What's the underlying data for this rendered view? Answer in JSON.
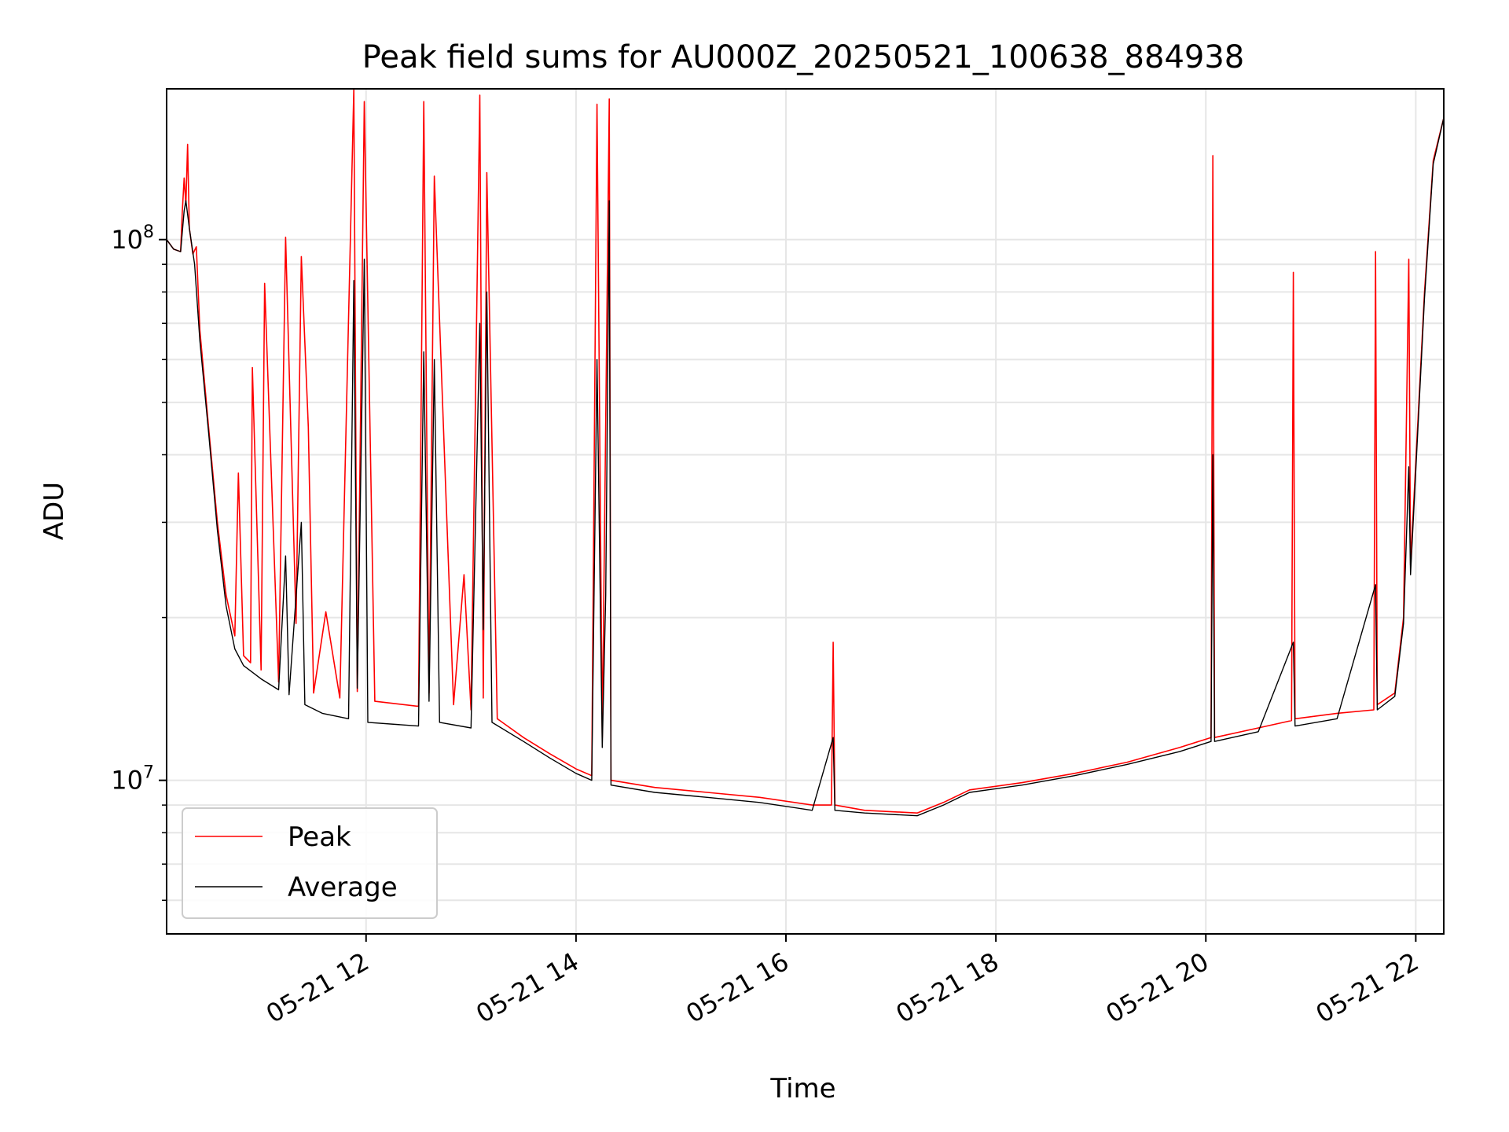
{
  "chart_data": {
    "type": "line",
    "title": "Peak field sums for AU000Z_20250521_100638_884938",
    "xlabel": "Time",
    "ylabel": "ADU",
    "yscale": "log",
    "xlim": [
      "2025-05-21 10:06",
      "2025-05-21 22:16"
    ],
    "ylim": [
      5200000,
      190000000
    ],
    "x_ticks": [
      {
        "value": "2025-05-21 12:00",
        "label": "05-21 12"
      },
      {
        "value": "2025-05-21 14:00",
        "label": "05-21 14"
      },
      {
        "value": "2025-05-21 16:00",
        "label": "05-21 16"
      },
      {
        "value": "2025-05-21 18:00",
        "label": "05-21 18"
      },
      {
        "value": "2025-05-21 20:00",
        "label": "05-21 20"
      },
      {
        "value": "2025-05-21 22:00",
        "label": "05-21 22"
      }
    ],
    "y_ticks": [
      {
        "value": 10000000,
        "base": "10",
        "exp": "7"
      },
      {
        "value": 100000000,
        "base": "10",
        "exp": "8"
      }
    ],
    "grid": true,
    "legend_position": "lower-left",
    "series": [
      {
        "name": "Peak",
        "color": "#ff0000",
        "points": [
          [
            "2025-05-21 10:06",
            100000000
          ],
          [
            "2025-05-21 10:10",
            96000000
          ],
          [
            "2025-05-21 10:14",
            95000000
          ],
          [
            "2025-05-21 10:15",
            113000000
          ],
          [
            "2025-05-21 10:16",
            130000000
          ],
          [
            "2025-05-21 10:17",
            116000000
          ],
          [
            "2025-05-21 10:18",
            150000000
          ],
          [
            "2025-05-21 10:19",
            105000000
          ],
          [
            "2025-05-21 10:21",
            94000000
          ],
          [
            "2025-05-21 10:23",
            97000000
          ],
          [
            "2025-05-21 10:25",
            68000000
          ],
          [
            "2025-05-21 10:30",
            45000000
          ],
          [
            "2025-05-21 10:35",
            30000000
          ],
          [
            "2025-05-21 10:40",
            22000000
          ],
          [
            "2025-05-21 10:45",
            18500000
          ],
          [
            "2025-05-21 10:47",
            37000000
          ],
          [
            "2025-05-21 10:50",
            17000000
          ],
          [
            "2025-05-21 10:54",
            16500000
          ],
          [
            "2025-05-21 10:55",
            58000000
          ],
          [
            "2025-05-21 11:00",
            16000000
          ],
          [
            "2025-05-21 11:02",
            83000000
          ],
          [
            "2025-05-21 11:10",
            15200000
          ],
          [
            "2025-05-21 11:14",
            101000000
          ],
          [
            "2025-05-21 11:20",
            19500000
          ],
          [
            "2025-05-21 11:23",
            93000000
          ],
          [
            "2025-05-21 11:27",
            45000000
          ],
          [
            "2025-05-21 11:30",
            14500000
          ],
          [
            "2025-05-21 11:37",
            20500000
          ],
          [
            "2025-05-21 11:45",
            14200000
          ],
          [
            "2025-05-21 11:53",
            190000000
          ],
          [
            "2025-05-21 11:55",
            14600000
          ],
          [
            "2025-05-21 11:59",
            180000000
          ],
          [
            "2025-05-21 12:05",
            14000000
          ],
          [
            "2025-05-21 12:30",
            13700000
          ],
          [
            "2025-05-21 12:33",
            180000000
          ],
          [
            "2025-05-21 12:36",
            14500000
          ],
          [
            "2025-05-21 12:39",
            131000000
          ],
          [
            "2025-05-21 12:50",
            13800000
          ],
          [
            "2025-05-21 12:56",
            24000000
          ],
          [
            "2025-05-21 13:00",
            13500000
          ],
          [
            "2025-05-21 13:05",
            185000000
          ],
          [
            "2025-05-21 13:07",
            14200000
          ],
          [
            "2025-05-21 13:09",
            133000000
          ],
          [
            "2025-05-21 13:15",
            13000000
          ],
          [
            "2025-05-21 13:30",
            12000000
          ],
          [
            "2025-05-21 13:45",
            11200000
          ],
          [
            "2025-05-21 14:00",
            10500000
          ],
          [
            "2025-05-21 14:09",
            10200000
          ],
          [
            "2025-05-21 14:12",
            178000000
          ],
          [
            "2025-05-21 14:15",
            12000000
          ],
          [
            "2025-05-21 14:19",
            182000000
          ],
          [
            "2025-05-21 14:20",
            10000000
          ],
          [
            "2025-05-21 14:45",
            9700000
          ],
          [
            "2025-05-21 15:15",
            9500000
          ],
          [
            "2025-05-21 15:45",
            9300000
          ],
          [
            "2025-05-21 16:15",
            9000000
          ],
          [
            "2025-05-21 16:26",
            9000000
          ],
          [
            "2025-05-21 16:27",
            18000000
          ],
          [
            "2025-05-21 16:28",
            9000000
          ],
          [
            "2025-05-21 16:45",
            8800000
          ],
          [
            "2025-05-21 17:15",
            8700000
          ],
          [
            "2025-05-21 17:30",
            9100000
          ],
          [
            "2025-05-21 17:45",
            9600000
          ],
          [
            "2025-05-21 18:15",
            9900000
          ],
          [
            "2025-05-21 18:45",
            10300000
          ],
          [
            "2025-05-21 19:15",
            10800000
          ],
          [
            "2025-05-21 19:45",
            11500000
          ],
          [
            "2025-05-21 20:03",
            12000000
          ],
          [
            "2025-05-21 20:04",
            143000000
          ],
          [
            "2025-05-21 20:05",
            12000000
          ],
          [
            "2025-05-21 20:30",
            12500000
          ],
          [
            "2025-05-21 20:49",
            12900000
          ],
          [
            "2025-05-21 20:50",
            87000000
          ],
          [
            "2025-05-21 20:51",
            13000000
          ],
          [
            "2025-05-21 21:15",
            13300000
          ],
          [
            "2025-05-21 21:36",
            13500000
          ],
          [
            "2025-05-21 21:37",
            95000000
          ],
          [
            "2025-05-21 21:38",
            13800000
          ],
          [
            "2025-05-21 21:48",
            14500000
          ],
          [
            "2025-05-21 21:53",
            20000000
          ],
          [
            "2025-05-21 21:56",
            92000000
          ],
          [
            "2025-05-21 21:57",
            25000000
          ],
          [
            "2025-05-21 22:05",
            80000000
          ],
          [
            "2025-05-21 22:10",
            140000000
          ],
          [
            "2025-05-21 22:16",
            168000000
          ]
        ]
      },
      {
        "name": "Average",
        "color": "#000000",
        "points": [
          [
            "2025-05-21 10:06",
            100000000
          ],
          [
            "2025-05-21 10:10",
            96000000
          ],
          [
            "2025-05-21 10:14",
            95000000
          ],
          [
            "2025-05-21 10:16",
            113000000
          ],
          [
            "2025-05-21 10:17",
            118000000
          ],
          [
            "2025-05-21 10:19",
            105000000
          ],
          [
            "2025-05-21 10:22",
            90000000
          ],
          [
            "2025-05-21 10:25",
            65000000
          ],
          [
            "2025-05-21 10:30",
            44000000
          ],
          [
            "2025-05-21 10:35",
            29000000
          ],
          [
            "2025-05-21 10:40",
            21000000
          ],
          [
            "2025-05-21 10:45",
            17500000
          ],
          [
            "2025-05-21 10:50",
            16300000
          ],
          [
            "2025-05-21 11:00",
            15400000
          ],
          [
            "2025-05-21 11:10",
            14700000
          ],
          [
            "2025-05-21 11:14",
            26000000
          ],
          [
            "2025-05-21 11:16",
            14400000
          ],
          [
            "2025-05-21 11:23",
            30000000
          ],
          [
            "2025-05-21 11:25",
            13800000
          ],
          [
            "2025-05-21 11:35",
            13300000
          ],
          [
            "2025-05-21 11:50",
            13000000
          ],
          [
            "2025-05-21 11:53",
            84000000
          ],
          [
            "2025-05-21 11:55",
            14800000
          ],
          [
            "2025-05-21 11:59",
            92000000
          ],
          [
            "2025-05-21 12:01",
            12800000
          ],
          [
            "2025-05-21 12:30",
            12600000
          ],
          [
            "2025-05-21 12:33",
            62000000
          ],
          [
            "2025-05-21 12:36",
            14000000
          ],
          [
            "2025-05-21 12:39",
            60000000
          ],
          [
            "2025-05-21 12:42",
            12800000
          ],
          [
            "2025-05-21 13:00",
            12500000
          ],
          [
            "2025-05-21 13:05",
            70000000
          ],
          [
            "2025-05-21 13:07",
            19000000
          ],
          [
            "2025-05-21 13:09",
            80000000
          ],
          [
            "2025-05-21 13:12",
            12800000
          ],
          [
            "2025-05-21 13:30",
            11800000
          ],
          [
            "2025-05-21 13:45",
            11000000
          ],
          [
            "2025-05-21 14:00",
            10300000
          ],
          [
            "2025-05-21 14:09",
            10000000
          ],
          [
            "2025-05-21 14:12",
            60000000
          ],
          [
            "2025-05-21 14:15",
            11500000
          ],
          [
            "2025-05-21 14:17",
            22000000
          ],
          [
            "2025-05-21 14:19",
            118000000
          ],
          [
            "2025-05-21 14:20",
            9800000
          ],
          [
            "2025-05-21 14:45",
            9500000
          ],
          [
            "2025-05-21 15:15",
            9300000
          ],
          [
            "2025-05-21 15:45",
            9100000
          ],
          [
            "2025-05-21 16:15",
            8800000
          ],
          [
            "2025-05-21 16:27",
            12000000
          ],
          [
            "2025-05-21 16:28",
            8800000
          ],
          [
            "2025-05-21 16:45",
            8700000
          ],
          [
            "2025-05-21 17:15",
            8600000
          ],
          [
            "2025-05-21 17:30",
            9000000
          ],
          [
            "2025-05-21 17:45",
            9500000
          ],
          [
            "2025-05-21 18:15",
            9800000
          ],
          [
            "2025-05-21 18:45",
            10200000
          ],
          [
            "2025-05-21 19:15",
            10700000
          ],
          [
            "2025-05-21 19:45",
            11300000
          ],
          [
            "2025-05-21 20:03",
            11800000
          ],
          [
            "2025-05-21 20:04",
            40000000
          ],
          [
            "2025-05-21 20:05",
            11800000
          ],
          [
            "2025-05-21 20:30",
            12300000
          ],
          [
            "2025-05-21 20:50",
            18000000
          ],
          [
            "2025-05-21 20:51",
            12600000
          ],
          [
            "2025-05-21 21:15",
            13000000
          ],
          [
            "2025-05-21 21:37",
            23000000
          ],
          [
            "2025-05-21 21:38",
            13500000
          ],
          [
            "2025-05-21 21:48",
            14300000
          ],
          [
            "2025-05-21 21:53",
            19500000
          ],
          [
            "2025-05-21 21:56",
            38000000
          ],
          [
            "2025-05-21 21:57",
            24000000
          ],
          [
            "2025-05-21 22:05",
            78000000
          ],
          [
            "2025-05-21 22:10",
            138000000
          ],
          [
            "2025-05-21 22:16",
            168000000
          ]
        ]
      }
    ]
  }
}
